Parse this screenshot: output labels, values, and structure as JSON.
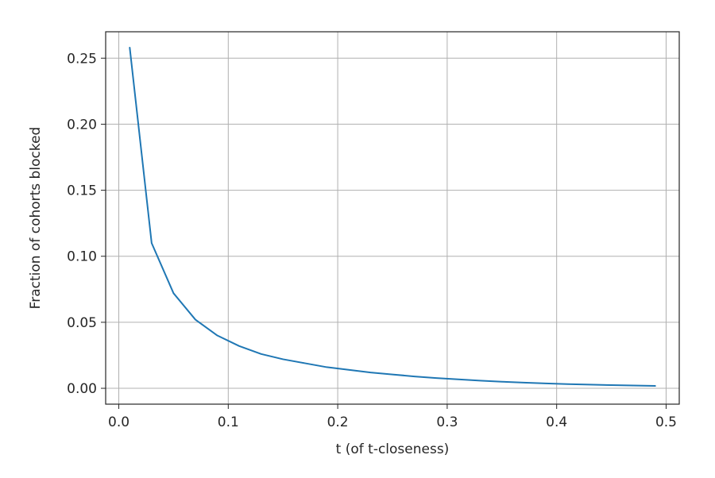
{
  "chart_data": {
    "type": "line",
    "title": "",
    "xlabel": "t (of t-closeness)",
    "ylabel": "Fraction of cohorts blocked",
    "xlim": [
      -0.012,
      0.512
    ],
    "ylim": [
      -0.012,
      0.27
    ],
    "xticks": [
      0.0,
      0.1,
      0.2,
      0.3,
      0.4,
      0.5
    ],
    "xtick_labels": [
      "0.0",
      "0.1",
      "0.2",
      "0.3",
      "0.4",
      "0.5"
    ],
    "yticks": [
      0.0,
      0.05,
      0.1,
      0.15,
      0.2,
      0.25
    ],
    "ytick_labels": [
      "0.00",
      "0.05",
      "0.10",
      "0.15",
      "0.20",
      "0.25"
    ],
    "grid": true,
    "legend": "none",
    "series": [
      {
        "color": "#1f77b4",
        "x": [
          0.01,
          0.03,
          0.05,
          0.07,
          0.09,
          0.11,
          0.13,
          0.15,
          0.17,
          0.19,
          0.21,
          0.23,
          0.25,
          0.27,
          0.29,
          0.31,
          0.33,
          0.35,
          0.37,
          0.39,
          0.41,
          0.43,
          0.45,
          0.47,
          0.49
        ],
        "y": [
          0.258,
          0.11,
          0.072,
          0.052,
          0.04,
          0.032,
          0.026,
          0.022,
          0.019,
          0.016,
          0.014,
          0.012,
          0.0105,
          0.009,
          0.0078,
          0.0068,
          0.0058,
          0.005,
          0.0043,
          0.0037,
          0.0032,
          0.0028,
          0.0024,
          0.0021,
          0.0018
        ]
      }
    ]
  }
}
